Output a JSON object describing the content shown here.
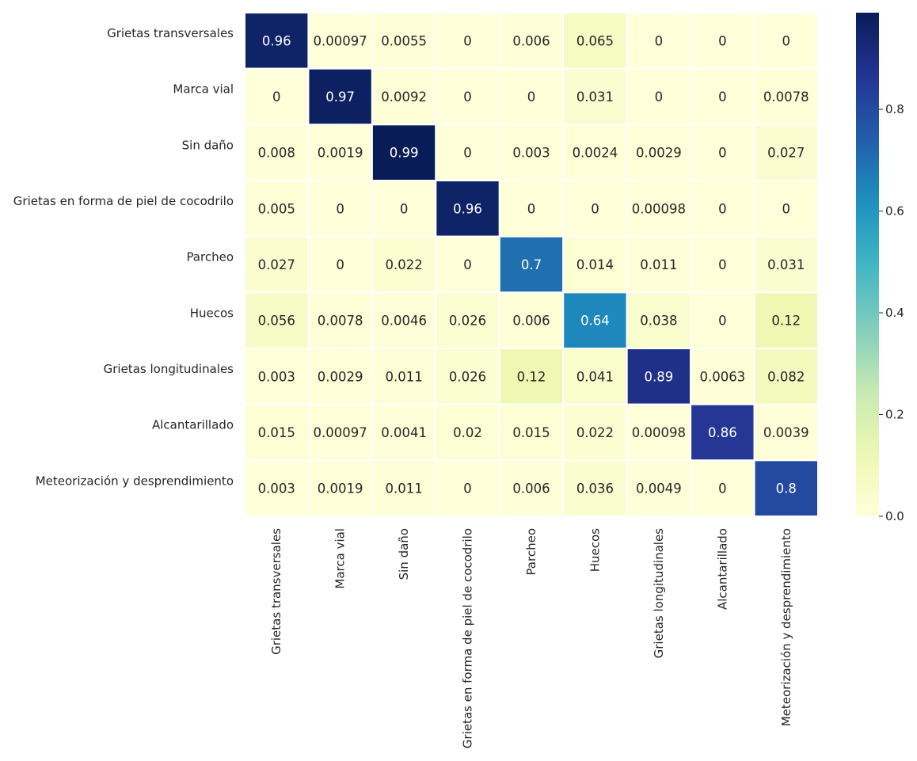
{
  "chart_data": {
    "type": "heatmap",
    "title": "",
    "xlabel": "",
    "ylabel": "",
    "row_labels": [
      "Grietas transversales",
      "Marca vial",
      "Sin daño",
      "Grietas en forma de piel de cocodrilo",
      "Parcheo",
      "Huecos",
      "Grietas longitudinales",
      "Alcantarillado",
      "Meteorización y desprendimiento"
    ],
    "col_labels": [
      "Grietas transversales",
      "Marca vial",
      "Sin daño",
      "Grietas en forma de piel de cocodrilo",
      "Parcheo",
      "Huecos",
      "Grietas longitudinales",
      "Alcantarillado",
      "Meteorización y desprendimiento"
    ],
    "values": [
      [
        "0.96",
        "0.00097",
        "0.0055",
        "0",
        "0.006",
        "0.065",
        "0",
        "0",
        "0"
      ],
      [
        "0",
        "0.97",
        "0.0092",
        "0",
        "0",
        "0.031",
        "0",
        "0",
        "0.0078"
      ],
      [
        "0.008",
        "0.0019",
        "0.99",
        "0",
        "0.003",
        "0.0024",
        "0.0029",
        "0",
        "0.027"
      ],
      [
        "0.005",
        "0",
        "0",
        "0.96",
        "0",
        "0",
        "0.00098",
        "0",
        "0"
      ],
      [
        "0.027",
        "0",
        "0.022",
        "0",
        "0.7",
        "0.014",
        "0.011",
        "0",
        "0.031"
      ],
      [
        "0.056",
        "0.0078",
        "0.0046",
        "0.026",
        "0.006",
        "0.64",
        "0.038",
        "0",
        "0.12"
      ],
      [
        "0.003",
        "0.0029",
        "0.011",
        "0.026",
        "0.12",
        "0.041",
        "0.89",
        "0.0063",
        "0.082"
      ],
      [
        "0.015",
        "0.00097",
        "0.0041",
        "0.02",
        "0.015",
        "0.022",
        "0.00098",
        "0.86",
        "0.0039"
      ],
      [
        "0.003",
        "0.0019",
        "0.011",
        "0",
        "0.006",
        "0.036",
        "0.0049",
        "0",
        "0.8"
      ]
    ],
    "colorbar": {
      "colormap": "YlGnBu",
      "vmin": 0,
      "vmax": 0.99,
      "ticks": [
        "0.0",
        "0.2",
        "0.4",
        "0.6",
        "0.8"
      ]
    },
    "grid": false,
    "legend": "colorbar-right"
  }
}
